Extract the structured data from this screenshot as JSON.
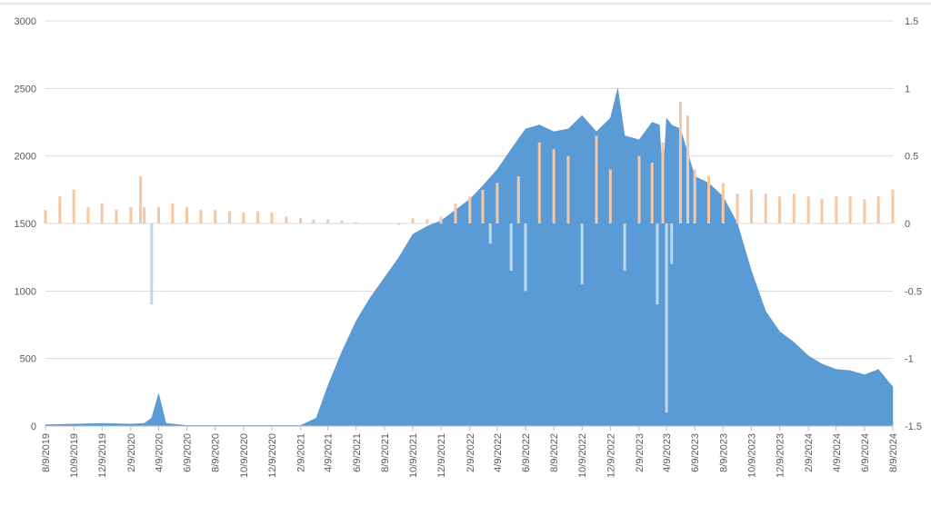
{
  "chart_data": {
    "type": "area",
    "title": "",
    "xlabel": "",
    "ylabel": "",
    "y2label": "",
    "grid": true,
    "legend": "none",
    "colors": {
      "area": "#5b9bd5",
      "pos_bar": "#f4c7a5",
      "neg_bar": "#bdd7ee",
      "grid": "#d9d9d9",
      "axis": "#bfbfbf"
    },
    "x_tick_labels": [
      "8/9/2019",
      "10/9/2019",
      "12/9/2019",
      "2/9/2020",
      "4/9/2020",
      "6/9/2020",
      "8/9/2020",
      "10/9/2020",
      "12/9/2020",
      "2/9/2021",
      "4/9/2021",
      "6/9/2021",
      "8/9/2021",
      "10/9/2021",
      "12/9/2021",
      "2/9/2022",
      "4/9/2022",
      "6/9/2022",
      "8/9/2022",
      "10/9/2022",
      "12/9/2022",
      "2/9/2023",
      "4/9/2023",
      "6/9/2023",
      "8/9/2023",
      "10/9/2023",
      "12/9/2023",
      "2/9/2024",
      "4/9/2024",
      "6/9/2024",
      "8/9/2024"
    ],
    "y_left": {
      "ticks": [
        "0",
        "500",
        "1000",
        "1500",
        "2000",
        "2500",
        "3000"
      ],
      "ylim": [
        0,
        3000
      ]
    },
    "y_right": {
      "ticks": [
        "-1.5",
        "-1",
        "-0.5",
        "0",
        "0.5",
        "1",
        "1.5"
      ],
      "ylim": [
        -1.5,
        1.5
      ]
    },
    "series": [
      {
        "axis": "left",
        "kind": "area",
        "x": [
          "8/9/2019",
          "10/9/2019",
          "12/9/2019",
          "2/9/2020",
          "3/9/2020",
          "3/25/2020",
          "4/9/2020",
          "4/25/2020",
          "6/9/2020",
          "8/9/2020",
          "10/9/2020",
          "12/9/2020",
          "2/9/2021",
          "3/15/2021",
          "4/9/2021",
          "5/9/2021",
          "6/9/2021",
          "7/9/2021",
          "8/9/2021",
          "9/9/2021",
          "10/9/2021",
          "11/9/2021",
          "12/9/2021",
          "1/9/2022",
          "2/9/2022",
          "3/9/2022",
          "4/9/2022",
          "5/9/2022",
          "6/9/2022",
          "7/9/2022",
          "8/9/2022",
          "9/9/2022",
          "10/9/2022",
          "11/9/2022",
          "12/9/2022",
          "12/25/2022",
          "1/9/2023",
          "2/9/2023",
          "3/9/2023",
          "3/25/2023",
          "4/1/2023",
          "4/9/2023",
          "4/20/2023",
          "5/9/2023",
          "6/9/2023",
          "7/9/2023",
          "8/9/2023",
          "9/9/2023",
          "10/9/2023",
          "11/9/2023",
          "12/9/2023",
          "1/9/2024",
          "2/9/2024",
          "3/9/2024",
          "4/9/2024",
          "5/9/2024",
          "6/9/2024",
          "7/9/2024",
          "8/9/2024"
        ],
        "values": [
          10,
          15,
          20,
          15,
          20,
          60,
          240,
          20,
          5,
          5,
          5,
          5,
          5,
          60,
          300,
          550,
          780,
          950,
          1100,
          1250,
          1420,
          1480,
          1520,
          1600,
          1680,
          1780,
          1900,
          2050,
          2200,
          2230,
          2180,
          2200,
          2300,
          2180,
          2280,
          2500,
          2150,
          2120,
          2250,
          2230,
          1800,
          2280,
          2230,
          2200,
          1850,
          1800,
          1700,
          1500,
          1150,
          850,
          700,
          620,
          520,
          460,
          420,
          410,
          380,
          420,
          290
        ]
      },
      {
        "axis": "right",
        "kind": "bar",
        "x": [
          "8/9/2019",
          "9/9/2019",
          "10/9/2019",
          "11/9/2019",
          "12/9/2019",
          "1/9/2020",
          "2/9/2020",
          "3/1/2020",
          "3/9/2020",
          "3/25/2020",
          "4/9/2020",
          "5/9/2020",
          "6/9/2020",
          "7/9/2020",
          "8/9/2020",
          "9/9/2020",
          "10/9/2020",
          "11/9/2020",
          "12/9/2020",
          "1/9/2021",
          "2/9/2021",
          "3/9/2021",
          "4/9/2021",
          "5/9/2021",
          "6/9/2021",
          "7/9/2021",
          "8/9/2021",
          "9/9/2021",
          "10/9/2021",
          "11/9/2021",
          "12/9/2021",
          "1/9/2022",
          "2/9/2022",
          "3/9/2022",
          "3/25/2022",
          "4/9/2022",
          "5/9/2022",
          "5/25/2022",
          "6/9/2022",
          "7/9/2022",
          "8/9/2022",
          "9/9/2022",
          "10/9/2022",
          "11/9/2022",
          "12/9/2022",
          "1/9/2023",
          "2/9/2023",
          "3/9/2023",
          "3/20/2023",
          "4/1/2023",
          "4/9/2023",
          "4/20/2023",
          "5/9/2023",
          "5/25/2023",
          "6/9/2023",
          "7/9/2023",
          "8/9/2023",
          "9/9/2023",
          "10/9/2023",
          "11/9/2023",
          "12/9/2023",
          "1/9/2024",
          "2/9/2024",
          "3/9/2024",
          "4/9/2024",
          "5/9/2024",
          "6/9/2024",
          "7/9/2024",
          "8/9/2024"
        ],
        "values": [
          0.1,
          0.2,
          0.25,
          0.12,
          0.15,
          0.1,
          0.12,
          0.35,
          0.12,
          -0.6,
          0.12,
          0.15,
          0.12,
          0.1,
          0.1,
          0.09,
          0.08,
          0.09,
          0.08,
          0.05,
          0.04,
          0.03,
          0.03,
          0.02,
          0.01,
          0.0,
          0.0,
          -0.01,
          0.04,
          0.03,
          0.05,
          0.15,
          0.2,
          0.25,
          -0.15,
          0.3,
          -0.35,
          0.35,
          -0.5,
          0.6,
          0.55,
          0.5,
          -0.45,
          0.65,
          0.4,
          -0.35,
          0.5,
          0.45,
          -0.6,
          0.6,
          -1.4,
          -0.3,
          0.9,
          0.8,
          0.4,
          0.35,
          0.3,
          0.22,
          0.25,
          0.22,
          0.2,
          0.22,
          0.2,
          0.18,
          0.2,
          0.2,
          0.18,
          0.2,
          0.25
        ]
      }
    ]
  }
}
